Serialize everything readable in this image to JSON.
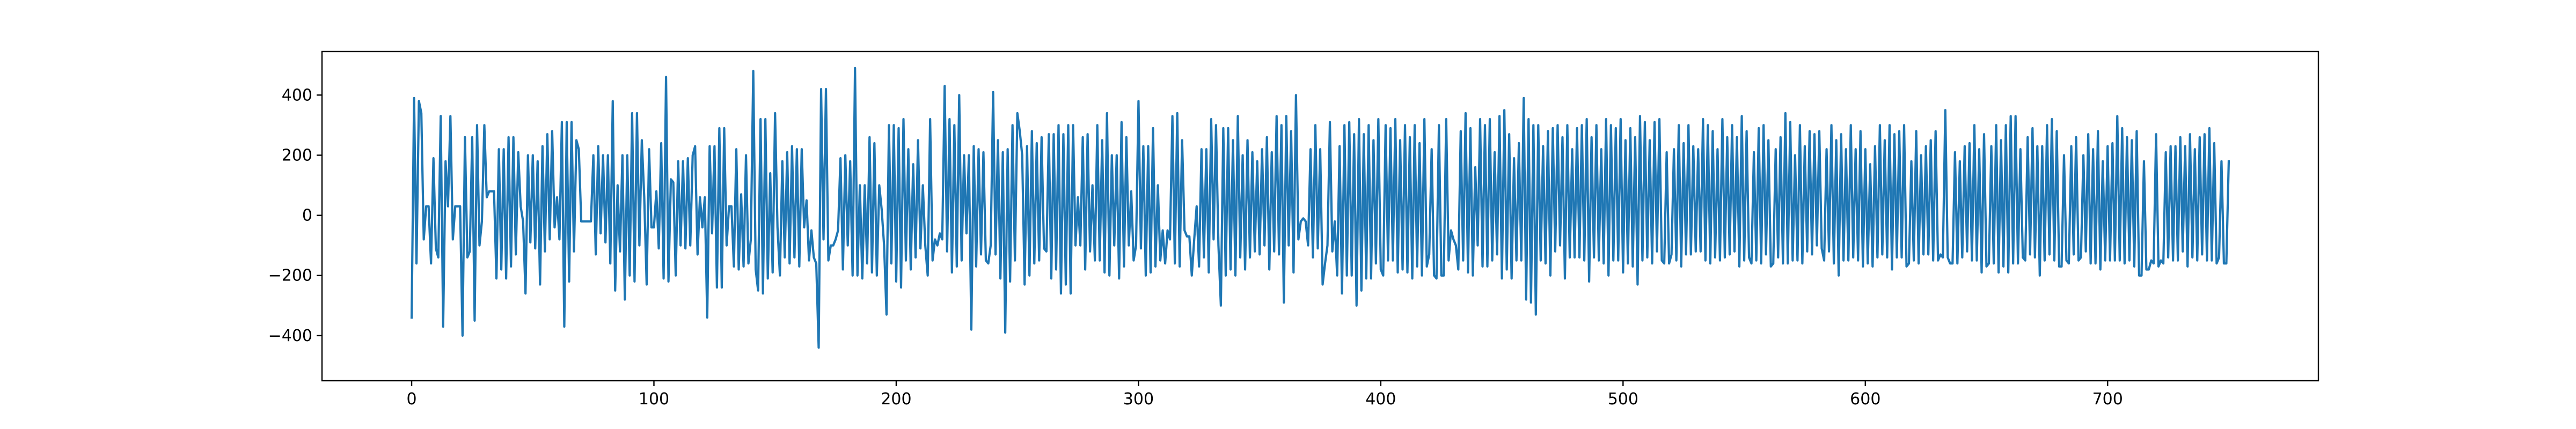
{
  "chart_data": {
    "type": "line",
    "title": "",
    "xlabel": "",
    "ylabel": "",
    "xlim": [
      -37,
      787
    ],
    "ylim": [
      -550,
      545
    ],
    "x_ticks": [
      0,
      100,
      200,
      300,
      400,
      500,
      600,
      700
    ],
    "x_tick_labels": [
      "0",
      "100",
      "200",
      "300",
      "400",
      "500",
      "600",
      "700"
    ],
    "y_ticks": [
      -400,
      -200,
      0,
      200,
      400
    ],
    "y_tick_labels": [
      "−400",
      "−200",
      "0",
      "200",
      "400"
    ],
    "grid": false,
    "legend": "none",
    "series": [
      {
        "color": "#1f77b4",
        "x_start": 0,
        "x_step": 1,
        "values": [
          -340,
          390,
          -160,
          380,
          340,
          -80,
          30,
          30,
          -160,
          190,
          -110,
          -140,
          330,
          -370,
          180,
          30,
          330,
          -80,
          30,
          30,
          30,
          -400,
          260,
          -140,
          -120,
          260,
          -350,
          300,
          -100,
          -20,
          300,
          60,
          80,
          80,
          80,
          -210,
          220,
          -180,
          220,
          -210,
          260,
          -170,
          260,
          -130,
          210,
          30,
          -20,
          -260,
          200,
          -90,
          200,
          -110,
          180,
          -230,
          230,
          -120,
          270,
          -80,
          280,
          -40,
          60,
          -80,
          310,
          -370,
          310,
          -220,
          310,
          -120,
          250,
          220,
          -20,
          -20,
          -20,
          -20,
          -20,
          200,
          -130,
          230,
          -60,
          200,
          -90,
          200,
          -160,
          380,
          -250,
          100,
          -120,
          200,
          -280,
          200,
          -200,
          340,
          -220,
          340,
          -100,
          250,
          60,
          -230,
          220,
          -40,
          -40,
          80,
          -110,
          240,
          -210,
          460,
          -220,
          120,
          110,
          -200,
          180,
          -100,
          180,
          -110,
          190,
          -100,
          200,
          230,
          -130,
          60,
          -40,
          60,
          -340,
          230,
          -60,
          230,
          -240,
          290,
          -240,
          290,
          -100,
          30,
          30,
          -170,
          220,
          -180,
          70,
          -170,
          200,
          -160,
          -80,
          480,
          -180,
          -250,
          320,
          -260,
          320,
          -210,
          140,
          -190,
          340,
          -40,
          -200,
          180,
          -140,
          210,
          -160,
          230,
          -140,
          220,
          -170,
          220,
          -40,
          50,
          -150,
          -50,
          -140,
          -160,
          -440,
          420,
          -80,
          420,
          -150,
          -100,
          -100,
          -80,
          -50,
          190,
          -180,
          200,
          -100,
          180,
          -200,
          490,
          -200,
          100,
          -210,
          100,
          -160,
          260,
          -190,
          240,
          -200,
          100,
          20,
          -100,
          -330,
          300,
          -160,
          300,
          -220,
          290,
          -240,
          320,
          -150,
          220,
          -180,
          170,
          -140,
          250,
          -110,
          100,
          -100,
          -200,
          320,
          -150,
          -80,
          -100,
          -60,
          -80,
          430,
          -120,
          320,
          -190,
          300,
          -170,
          400,
          -150,
          200,
          -60,
          200,
          -380,
          230,
          -170,
          220,
          -130,
          210,
          -150,
          -160,
          -100,
          410,
          -130,
          250,
          -210,
          210,
          -390,
          220,
          -220,
          300,
          -150,
          340,
          280,
          200,
          -230,
          230,
          -200,
          280,
          -160,
          240,
          -150,
          260,
          -110,
          -120,
          270,
          -210,
          270,
          -180,
          300,
          -260,
          270,
          -230,
          300,
          -260,
          300,
          -100,
          60,
          -100,
          260,
          -180,
          270,
          -120,
          100,
          -150,
          300,
          -150,
          250,
          -190,
          340,
          -200,
          200,
          -100,
          200,
          -210,
          310,
          -170,
          260,
          -100,
          80,
          -150,
          -100,
          380,
          -110,
          230,
          -200,
          230,
          -190,
          290,
          -170,
          100,
          -150,
          -50,
          -160,
          -50,
          -80,
          330,
          -160,
          340,
          -170,
          250,
          -50,
          -70,
          -70,
          -200,
          -80,
          30,
          -170,
          220,
          -140,
          220,
          -190,
          320,
          -80,
          300,
          -100,
          -300,
          290,
          -200,
          290,
          -180,
          250,
          -200,
          330,
          -140,
          200,
          -180,
          250,
          -140,
          210,
          -120,
          180,
          -130,
          220,
          -100,
          260,
          -180,
          210,
          -120,
          330,
          -130,
          300,
          -290,
          330,
          -100,
          280,
          -190,
          400,
          -80,
          -20,
          -10,
          -20,
          -100,
          220,
          -140,
          300,
          -110,
          220,
          -230,
          -160,
          -100,
          310,
          -120,
          -20,
          -200,
          230,
          -260,
          300,
          -200,
          310,
          -200,
          270,
          -300,
          320,
          -250,
          270,
          -210,
          300,
          -210,
          250,
          -160,
          320,
          -180,
          -200,
          300,
          -150,
          290,
          -150,
          320,
          -190,
          250,
          -180,
          300,
          -190,
          260,
          -210,
          300,
          -170,
          240,
          -200,
          320,
          -170,
          -130,
          220,
          -200,
          -210,
          300,
          -200,
          -200,
          320,
          -150,
          -50,
          -80,
          -100,
          -180,
          280,
          -150,
          340,
          -190,
          290,
          -200,
          160,
          -100,
          320,
          -170,
          300,
          -170,
          320,
          -150,
          210,
          -130,
          330,
          -210,
          350,
          -180,
          270,
          -210,
          190,
          -150,
          240,
          -150,
          390,
          -280,
          320,
          -290,
          300,
          -330,
          300,
          -150,
          230,
          -160,
          280,
          -200,
          290,
          -120,
          300,
          -100,
          260,
          -210,
          300,
          -140,
          220,
          -140,
          290,
          -140,
          300,
          -150,
          320,
          -220,
          260,
          -140,
          300,
          -150,
          220,
          -160,
          320,
          -200,
          300,
          -150,
          290,
          -150,
          320,
          -190,
          250,
          -160,
          290,
          -170,
          260,
          -230,
          330,
          -150,
          310,
          -140,
          250,
          -160,
          310,
          -120,
          320,
          -150,
          -160,
          210,
          -160,
          -130,
          220,
          -150,
          300,
          -170,
          240,
          -130,
          300,
          -130,
          230,
          -120,
          220,
          -120,
          320,
          -150,
          300,
          -160,
          280,
          -140,
          220,
          -150,
          320,
          -140,
          260,
          -130,
          300,
          -120,
          260,
          -170,
          330,
          -150,
          280,
          -140,
          -160,
          210,
          -150,
          290,
          -160,
          300,
          -130,
          250,
          -170,
          -160,
          220,
          -140,
          260,
          -160,
          340,
          -160,
          310,
          -150,
          200,
          -150,
          300,
          -160,
          230,
          -120,
          280,
          -130,
          270,
          -100,
          280,
          -110,
          -150,
          220,
          -120,
          300,
          -160,
          250,
          -200,
          270,
          -150,
          220,
          -150,
          300,
          -140,
          220,
          -150,
          280,
          -170,
          220,
          -160,
          170,
          -170,
          230,
          -140,
          300,
          -130,
          250,
          -140,
          300,
          -180,
          270,
          -140,
          280,
          -140,
          300,
          -170,
          -160,
          180,
          -150,
          280,
          -160,
          200,
          -130,
          230,
          -130,
          250,
          -150,
          280,
          -150,
          -130,
          -140,
          350,
          -140,
          -160,
          -160,
          210,
          -160,
          180,
          -140,
          230,
          -120,
          240,
          -150,
          300,
          -150,
          220,
          -190,
          270,
          -170,
          -160,
          230,
          -160,
          300,
          -190,
          250,
          -170,
          300,
          -190,
          330,
          -160,
          330,
          -160,
          220,
          -140,
          -150,
          260,
          -130,
          290,
          -140,
          230,
          -200,
          230,
          -150,
          300,
          -130,
          320,
          -150,
          280,
          -170,
          -170,
          200,
          -150,
          -160,
          230,
          -130,
          260,
          -150,
          -140,
          200,
          -120,
          270,
          -160,
          220,
          -160,
          280,
          -180,
          180,
          -150,
          230,
          -150,
          240,
          -150,
          330,
          -150,
          290,
          -160,
          260,
          -150,
          250,
          -170,
          280,
          -200,
          -200,
          180,
          -180,
          -180,
          -150,
          -160,
          270,
          -170,
          -150,
          -160,
          210,
          -140,
          230,
          -150,
          230,
          -150,
          260,
          -120,
          230,
          -170,
          270,
          -140,
          220,
          -150,
          260,
          -130,
          270,
          -150,
          290,
          -150,
          240,
          -160,
          -140,
          180,
          -160,
          -160,
          180
        ]
      }
    ]
  }
}
